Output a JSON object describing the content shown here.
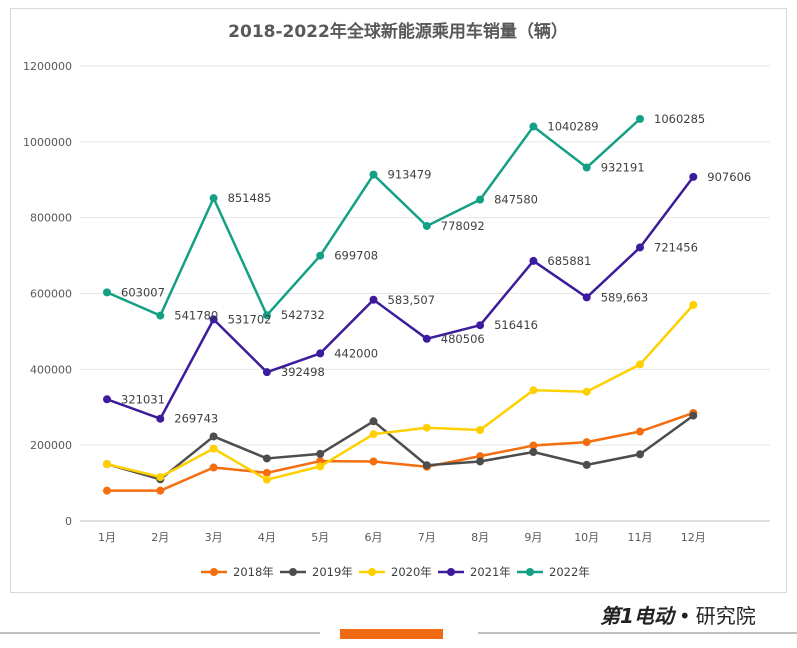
{
  "chart_data": {
    "type": "line",
    "title": "2018-2022年全球新能源乘用车销量（辆）",
    "categories": [
      "1月",
      "2月",
      "3月",
      "4月",
      "5月",
      "6月",
      "7月",
      "8月",
      "9月",
      "10月",
      "11月",
      "12月"
    ],
    "ylim": [
      0,
      1200000
    ],
    "yticks": [
      "0",
      "200000",
      "400000",
      "600000",
      "800000",
      "1000000",
      "1200000"
    ],
    "grid": true,
    "legend_position": "bottom",
    "series": [
      {
        "name": "2018年",
        "color": "#f46d0f",
        "values": [
          80000,
          80000,
          141000,
          127000,
          158000,
          157000,
          143000,
          171000,
          199000,
          208000,
          236000,
          285000
        ],
        "labels": []
      },
      {
        "name": "2019年",
        "color": "#4d4d4d",
        "values": [
          150000,
          110000,
          223000,
          165000,
          177000,
          263000,
          147000,
          157000,
          182000,
          148000,
          176000,
          278000
        ],
        "labels": []
      },
      {
        "name": "2020年",
        "color": "#ffd000",
        "values": [
          150000,
          116000,
          191000,
          109000,
          144000,
          229000,
          246000,
          240000,
          345000,
          341000,
          413000,
          570000
        ],
        "labels": []
      },
      {
        "name": "2021年",
        "color": "#3c1c9c",
        "values": [
          321031,
          269743,
          531702,
          392498,
          442000,
          583507,
          480506,
          516416,
          685881,
          589663,
          721456,
          907606
        ],
        "labels": [
          "321031",
          "269743",
          "531702",
          "392498",
          "442000",
          "583,507",
          "480506",
          "516416",
          "685881",
          "589,663",
          "721456",
          "907606"
        ]
      },
      {
        "name": "2022年",
        "color": "#14a085",
        "values": [
          603007,
          541780,
          851485,
          542732,
          699708,
          913479,
          778092,
          847580,
          1040289,
          932191,
          1060285,
          null
        ],
        "labels": [
          "603007",
          "541780",
          "851485",
          "542732",
          "699708",
          "913479",
          "778092",
          "847580",
          "1040289",
          "932191",
          "1060285",
          ""
        ]
      }
    ]
  },
  "footer": {
    "brand_logo": "第1电动",
    "separator": "•",
    "brand_suffix": "研究院"
  }
}
